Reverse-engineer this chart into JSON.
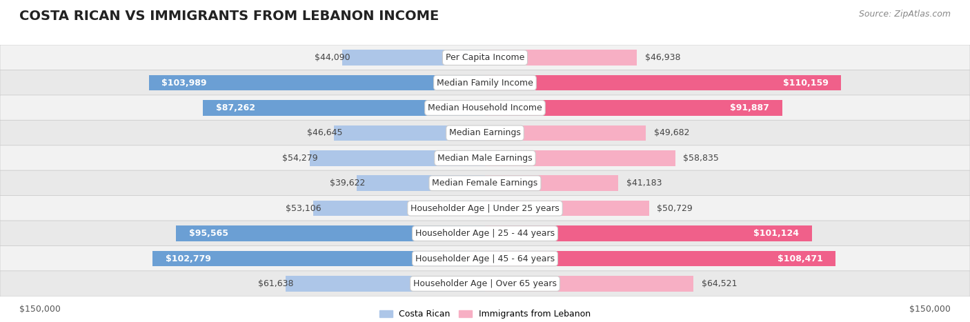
{
  "title": "COSTA RICAN VS IMMIGRANTS FROM LEBANON INCOME",
  "source": "Source: ZipAtlas.com",
  "categories": [
    "Per Capita Income",
    "Median Family Income",
    "Median Household Income",
    "Median Earnings",
    "Median Male Earnings",
    "Median Female Earnings",
    "Householder Age | Under 25 years",
    "Householder Age | 25 - 44 years",
    "Householder Age | 45 - 64 years",
    "Householder Age | Over 65 years"
  ],
  "costa_rican": [
    44090,
    103989,
    87262,
    46645,
    54279,
    39622,
    53106,
    95565,
    102779,
    61638
  ],
  "lebanon": [
    46938,
    110159,
    91887,
    49682,
    58835,
    41183,
    50729,
    101124,
    108471,
    64521
  ],
  "costa_rican_labels": [
    "$44,090",
    "$103,989",
    "$87,262",
    "$46,645",
    "$54,279",
    "$39,622",
    "$53,106",
    "$95,565",
    "$102,779",
    "$61,638"
  ],
  "lebanon_labels": [
    "$46,938",
    "$110,159",
    "$91,887",
    "$49,682",
    "$58,835",
    "$41,183",
    "$50,729",
    "$101,124",
    "$108,471",
    "$64,521"
  ],
  "max_value": 150000,
  "color_costa_rican_light": "#adc6e8",
  "color_costa_rican_dark": "#6b9fd4",
  "color_lebanon_light": "#f7afc4",
  "color_lebanon_dark": "#f0608a",
  "inside_threshold": 75000,
  "title_fontsize": 14,
  "label_fontsize": 9,
  "source_fontsize": 9,
  "axis_label_fontsize": 9,
  "row_colors": [
    "#f0f0f0",
    "#e8e8e8"
  ]
}
